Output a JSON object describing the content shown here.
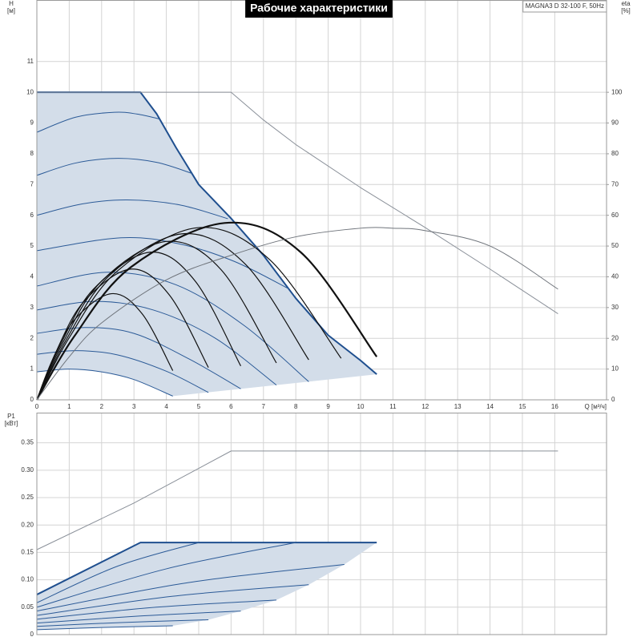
{
  "chart_data": [
    {
      "type": "line",
      "title": "Рабочие характеристики",
      "subtitle": "MAGNA3 D 32-100 F, 50Hz",
      "xlabel": "Q [м³/ч]",
      "ylabel": "H",
      "yunit": "[м]",
      "y2label": "eta",
      "y2unit": "[%]",
      "xlim": [
        0,
        17.6
      ],
      "xticks": [
        0,
        1,
        2,
        3,
        4,
        5,
        6,
        7,
        8,
        9,
        10,
        11,
        12,
        13,
        14,
        15,
        16
      ],
      "ylim": [
        0,
        13
      ],
      "yticks": [
        0,
        1,
        2,
        3,
        4,
        5,
        6,
        7,
        8,
        9,
        10,
        11
      ],
      "y2lim": [
        0,
        130
      ],
      "y2ticks": [
        0,
        10,
        20,
        30,
        40,
        50,
        60,
        70,
        80,
        90,
        100
      ],
      "grid": true,
      "area": {
        "color": "#d3dde9",
        "x": [
          0,
          3.2,
          3.7,
          4.3,
          5,
          6,
          7,
          8,
          9,
          10,
          10.5,
          4.2,
          3,
          2,
          1,
          0
        ],
        "values": [
          10,
          10,
          9.3,
          8.2,
          7.0,
          5.9,
          4.7,
          3.3,
          2.1,
          1.28,
          0.83,
          0.12,
          0.66,
          0.91,
          1.0,
          0.91
        ]
      },
      "series": [
        {
          "color": "#1f4f8f",
          "width": 2,
          "smooth": false,
          "x": [
            0,
            3.2,
            3.7,
            4.3,
            5,
            6,
            7,
            8,
            9,
            10,
            10.5
          ],
          "values": [
            10,
            10,
            9.3,
            8.2,
            7.0,
            5.9,
            4.7,
            3.3,
            2.1,
            1.28,
            0.83
          ]
        },
        {
          "color": "#2b5a97",
          "width": 1,
          "smooth": true,
          "x": [
            0,
            1,
            2,
            3,
            4.2
          ],
          "values": [
            0.91,
            1.0,
            0.91,
            0.66,
            0.12
          ]
        },
        {
          "color": "#2b5a97",
          "width": 1,
          "smooth": true,
          "x": [
            0,
            1.2,
            2.5,
            4,
            5.3
          ],
          "values": [
            1.48,
            1.6,
            1.46,
            0.93,
            0.24
          ]
        },
        {
          "color": "#2b5a97",
          "width": 1,
          "smooth": true,
          "x": [
            0,
            1.5,
            3,
            4.7,
            6.3
          ],
          "values": [
            2.16,
            2.35,
            2.16,
            1.33,
            0.36
          ]
        },
        {
          "color": "#2b5a97",
          "width": 1,
          "smooth": true,
          "x": [
            0,
            1.8,
            3.6,
            5.5,
            7.4
          ],
          "values": [
            2.92,
            3.2,
            2.92,
            2.01,
            0.48
          ]
        },
        {
          "color": "#2b5a97",
          "width": 1,
          "smooth": true,
          "x": [
            0,
            2.2,
            4.3,
            6.4,
            8.4
          ],
          "values": [
            3.7,
            4.15,
            3.74,
            2.42,
            0.59
          ]
        },
        {
          "color": "#2b5a97",
          "width": 1,
          "smooth": true,
          "x": [
            0,
            2.6,
            4.4,
            6.1,
            7.8
          ],
          "values": [
            4.85,
            5.27,
            5.07,
            4.5,
            3.6
          ]
        },
        {
          "color": "#2b5a97",
          "width": 1,
          "smooth": true,
          "x": [
            0,
            1.4,
            2.8,
            4.4,
            5.9
          ],
          "values": [
            6.0,
            6.37,
            6.5,
            6.34,
            5.89
          ]
        },
        {
          "color": "#2b5a97",
          "width": 1,
          "smooth": true,
          "x": [
            0,
            1.2,
            2.5,
            3.7,
            4.8
          ],
          "values": [
            7.3,
            7.7,
            7.85,
            7.72,
            7.36
          ]
        },
        {
          "color": "#2b5a97",
          "width": 1,
          "smooth": true,
          "x": [
            0,
            1.2,
            2.4,
            3.1,
            3.8
          ],
          "values": [
            8.7,
            9.19,
            9.35,
            9.29,
            9.13
          ]
        },
        {
          "color": "#111111",
          "width": 1.2,
          "smooth": true,
          "x": [
            0,
            0.46,
            1.15,
            2.3,
            3.25,
            4.2
          ],
          "values": [
            0,
            1.24,
            2.59,
            3.45,
            2.8,
            0.95
          ]
        },
        {
          "color": "#111111",
          "width": 1.2,
          "smooth": true,
          "x": [
            0,
            0.58,
            1.45,
            2.9,
            4.1,
            5.3
          ],
          "values": [
            0,
            1.53,
            3.19,
            4.25,
            3.4,
            1.05
          ]
        },
        {
          "color": "#111111",
          "width": 1.2,
          "smooth": true,
          "x": [
            0,
            0.7,
            1.75,
            3.5,
            4.9,
            6.3
          ],
          "values": [
            0,
            1.73,
            3.6,
            4.8,
            3.85,
            1.1
          ]
        },
        {
          "color": "#111111",
          "width": 1.2,
          "smooth": true,
          "x": [
            0,
            0.8,
            2,
            4,
            5.7,
            7.4
          ],
          "values": [
            0,
            1.85,
            3.86,
            5.15,
            4.22,
            1.2
          ]
        },
        {
          "color": "#111111",
          "width": 1.2,
          "smooth": true,
          "x": [
            0,
            0.9,
            2.25,
            4.5,
            6.45,
            8.4
          ],
          "values": [
            0,
            1.94,
            4.05,
            5.4,
            4.4,
            1.3
          ]
        },
        {
          "color": "#111111",
          "width": 1.2,
          "smooth": true,
          "x": [
            0,
            1,
            2.5,
            5,
            7.2,
            9.4
          ],
          "values": [
            0,
            2.02,
            4.2,
            5.6,
            4.55,
            1.35
          ]
        },
        {
          "color": "#111111",
          "width": 2.2,
          "smooth": true,
          "x": [
            0,
            1.16,
            2.9,
            5.8,
            8.15,
            10.5
          ],
          "values": [
            0,
            2.07,
            4.31,
            5.75,
            4.8,
            1.4
          ]
        },
        {
          "color": "#8a9099",
          "width": 1,
          "smooth": false,
          "x": [
            0,
            6,
            7,
            8,
            10,
            12,
            14,
            16.1
          ],
          "values": [
            10,
            10,
            9.1,
            8.3,
            6.9,
            5.6,
            4.25,
            2.8
          ]
        },
        {
          "color": "#6f747b",
          "width": 1,
          "smooth": true,
          "axis": "y2",
          "x": [
            0,
            1,
            2,
            4,
            6,
            8,
            10,
            11,
            12,
            14,
            16.1
          ],
          "values": [
            0,
            14,
            25,
            39,
            47,
            53,
            55.8,
            55.8,
            55,
            50,
            36
          ]
        }
      ]
    },
    {
      "type": "line",
      "ylabel": "P1",
      "yunit": "[кВт]",
      "xlim": [
        0,
        17.6
      ],
      "ylim": [
        0,
        0.405
      ],
      "yticks": [
        0,
        0.05,
        {
          "value": 0.1,
          "label": "0.10"
        },
        0.15,
        {
          "value": 0.2,
          "label": "0.20"
        },
        0.25,
        {
          "value": 0.3,
          "label": "0.30"
        },
        0.35
      ],
      "grid": true,
      "area": {
        "color": "#d3dde9",
        "x": [
          0,
          3.2,
          10.5,
          9.5,
          8.4,
          7.4,
          6.3,
          5.3,
          4.2,
          2,
          0
        ],
        "values": [
          0.073,
          0.168,
          0.168,
          0.128,
          0.091,
          0.063,
          0.043,
          0.027,
          0.016,
          0.013,
          0.009
        ]
      },
      "series": [
        {
          "color": "#8a9099",
          "width": 1,
          "smooth": false,
          "x": [
            0,
            3,
            6,
            16.1
          ],
          "values": [
            0.155,
            0.24,
            0.335,
            0.335
          ]
        },
        {
          "color": "#1f4f8f",
          "width": 2,
          "smooth": false,
          "x": [
            0,
            3.2,
            10.5
          ],
          "values": [
            0.073,
            0.168,
            0.168
          ]
        },
        {
          "color": "#2b5a97",
          "width": 1,
          "smooth": true,
          "x": [
            0,
            2,
            4.2
          ],
          "values": [
            0.009,
            0.013,
            0.016
          ]
        },
        {
          "color": "#2b5a97",
          "width": 1,
          "smooth": true,
          "x": [
            0,
            2.6,
            5.3
          ],
          "values": [
            0.015,
            0.022,
            0.027
          ]
        },
        {
          "color": "#2b5a97",
          "width": 1,
          "smooth": true,
          "x": [
            0,
            3.2,
            6.3
          ],
          "values": [
            0.021,
            0.034,
            0.043
          ]
        },
        {
          "color": "#2b5a97",
          "width": 1,
          "smooth": true,
          "x": [
            0,
            3.7,
            7.4
          ],
          "values": [
            0.028,
            0.05,
            0.063
          ]
        },
        {
          "color": "#2b5a97",
          "width": 1,
          "smooth": true,
          "x": [
            0,
            4.2,
            8.4
          ],
          "values": [
            0.035,
            0.07,
            0.091
          ]
        },
        {
          "color": "#2b5a97",
          "width": 1,
          "smooth": true,
          "x": [
            0,
            4.7,
            9.5
          ],
          "values": [
            0.043,
            0.095,
            0.128
          ]
        },
        {
          "color": "#2b5a97",
          "width": 1,
          "smooth": true,
          "x": [
            0,
            4,
            8
          ],
          "values": [
            0.05,
            0.12,
            0.168
          ]
        },
        {
          "color": "#2b5a97",
          "width": 1,
          "smooth": true,
          "x": [
            0,
            2.5,
            5
          ],
          "values": [
            0.058,
            0.125,
            0.168
          ]
        }
      ]
    }
  ]
}
